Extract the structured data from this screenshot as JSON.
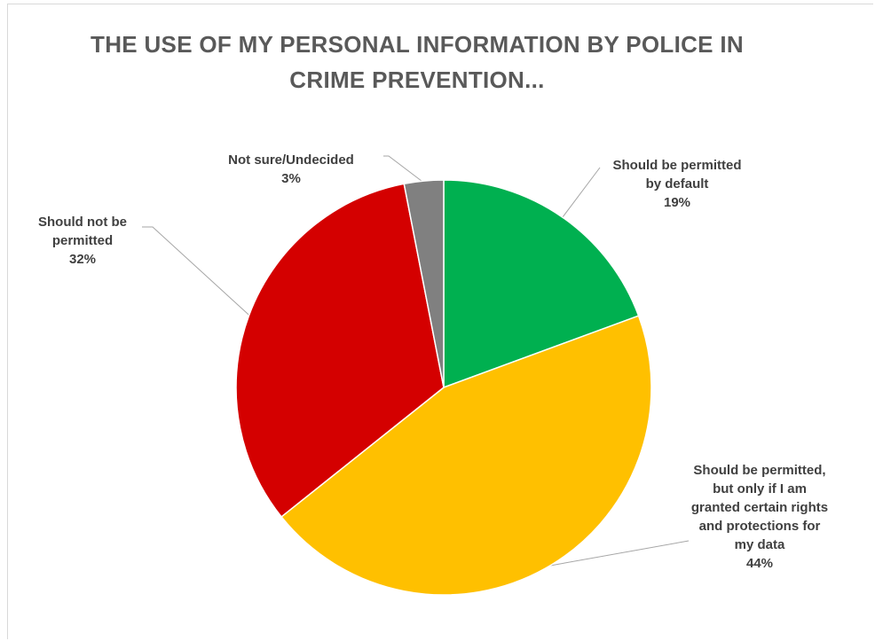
{
  "chart_data": {
    "type": "pie",
    "title_lines": [
      "THE USE OF MY PERSONAL INFORMATION BY POLICE IN",
      "CRIME PREVENTION..."
    ],
    "slices": [
      {
        "label_lines": [
          "Should be permitted",
          "by default"
        ],
        "value": 19,
        "value_label": "19%",
        "color": "#00b050"
      },
      {
        "label_lines": [
          "Should be permitted,",
          "but only if I am",
          "granted certain rights",
          "and protections for",
          "my data"
        ],
        "value": 44,
        "value_label": "44%",
        "color": "#ffc000"
      },
      {
        "label_lines": [
          "Should not be",
          "permitted"
        ],
        "value": 32,
        "value_label": "32%",
        "color": "#d40000"
      },
      {
        "label_lines": [
          "Not sure/Undecided"
        ],
        "value": 3,
        "value_label": "3%",
        "color": "#808080"
      }
    ],
    "start": "12 o'clock",
    "direction": "clockwise",
    "legend": "none"
  }
}
